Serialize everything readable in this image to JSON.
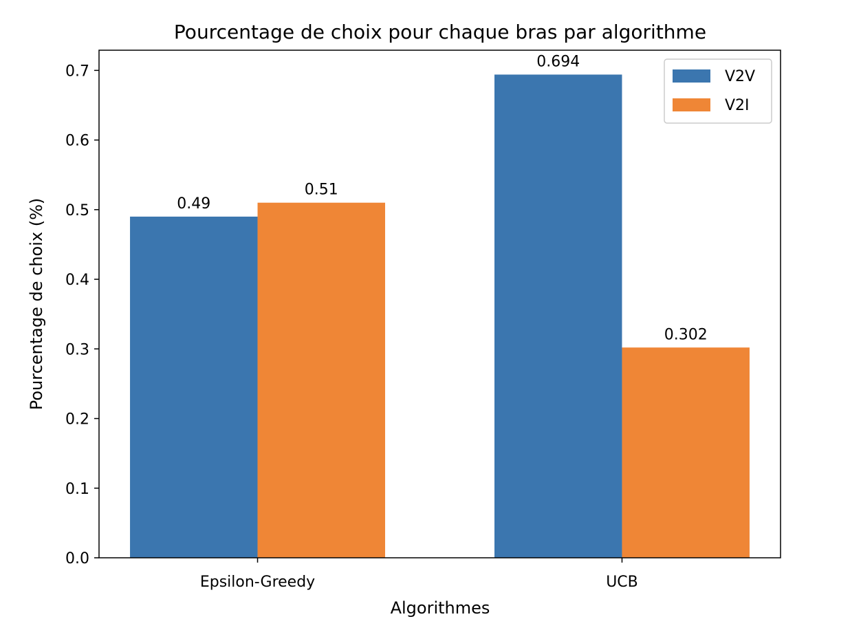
{
  "chart_data": {
    "type": "bar",
    "title": "Pourcentage de choix pour chaque bras par algorithme",
    "xlabel": "Algorithmes",
    "ylabel": "Pourcentage de choix (%)",
    "categories": [
      "Epsilon-Greedy",
      "UCB"
    ],
    "series": [
      {
        "name": "V2V",
        "values": [
          0.49,
          0.694
        ],
        "labels": [
          "0.49",
          "0.694"
        ],
        "color": "#3b76af"
      },
      {
        "name": "V2I",
        "values": [
          0.51,
          0.302
        ],
        "labels": [
          "0.51",
          "0.302"
        ],
        "color": "#ef8636"
      }
    ],
    "ylim": [
      0,
      0.729
    ],
    "yticks": [
      "0.0",
      "0.1",
      "0.2",
      "0.3",
      "0.4",
      "0.5",
      "0.6",
      "0.7"
    ],
    "grid": false,
    "legend_position": "top-right"
  }
}
